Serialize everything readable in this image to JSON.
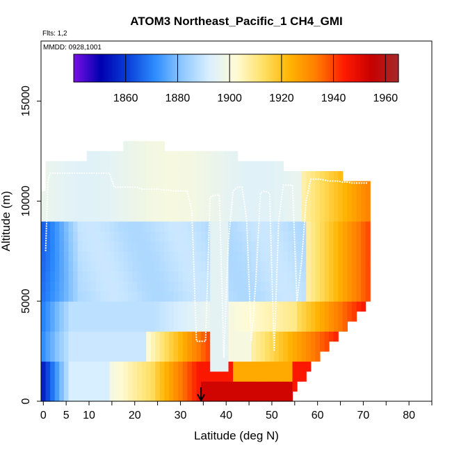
{
  "chart_data": {
    "type": "heatmap",
    "title": "ATOM3 Northeast_Pacific_1 CH4_GMI",
    "annotations": [
      "Flts: 1,2",
      "MMDD: 0928,1001"
    ],
    "xlabel": "Latitude (deg N)",
    "ylabel": "Altitude (m)",
    "xlim": [
      -0.5,
      85
    ],
    "ylim": [
      0,
      18000
    ],
    "xticks": [
      0,
      5,
      10,
      20,
      30,
      40,
      50,
      60,
      70,
      80
    ],
    "yticks": [
      0,
      5000,
      10000,
      15000
    ],
    "colorbar": {
      "range": [
        1840,
        1965
      ],
      "ticks": [
        1860,
        1880,
        1900,
        1920,
        1940,
        1960
      ],
      "colors": [
        "#7a10e6",
        "#0000b0",
        "#0a3fd8",
        "#2d8cff",
        "#8ec8ff",
        "#d9efff",
        "#fffbd6",
        "#ffe066",
        "#ffb300",
        "#ff7a00",
        "#ff1a00",
        "#c80000",
        "#a52a2a"
      ]
    },
    "flight_track": {
      "x": [
        0.5,
        1.0,
        1.5,
        2.5,
        3.5,
        4.5,
        5.5,
        6.5,
        7.5,
        8.5,
        9.5,
        10.5,
        11.5,
        12.5,
        13.5,
        14.5,
        15.5,
        16.5,
        17.5,
        18.5,
        19.5,
        20.5,
        21.5,
        22.5,
        23.5,
        24.5,
        25.5,
        26.5,
        27.5,
        28.5,
        29.5,
        30.5,
        31.5,
        32.5,
        33.5,
        34.5,
        35.5,
        36.5,
        37.5,
        38.5,
        39.5,
        40.5,
        41.5,
        42.5,
        43.5,
        44.5,
        45.5,
        46.5,
        47.5,
        48.5,
        49.5,
        50.5,
        51.5,
        52.5,
        53.5,
        54.5,
        55.5,
        56.5,
        57.5,
        58.5,
        59.5,
        60.5,
        61.5,
        62.5,
        63.5,
        64.5,
        65.5,
        66.5,
        67.5,
        68.5,
        69.5,
        70.5,
        71.0
      ],
      "y": [
        7500,
        11000,
        11400,
        11400,
        11400,
        11400,
        11400,
        11400,
        11400,
        11400,
        11400,
        11400,
        11400,
        11400,
        11400,
        11400,
        10700,
        10700,
        10700,
        10700,
        10700,
        10700,
        10600,
        10600,
        10600,
        10600,
        10600,
        10550,
        10550,
        10500,
        10500,
        10500,
        10500,
        9500,
        3000,
        3000,
        3000,
        10200,
        10300,
        10300,
        2200,
        8000,
        10500,
        10700,
        10700,
        9000,
        3000,
        6000,
        10400,
        10500,
        10400,
        2500,
        9000,
        10800,
        10800,
        10800,
        5000,
        7000,
        10000,
        11100,
        11100,
        11100,
        11050,
        11000,
        11000,
        11000,
        10950,
        10950,
        10900,
        10900,
        10900,
        10900,
        10900
      ]
    },
    "marker": {
      "x": 34.5,
      "y": 0,
      "label": "arrow"
    }
  }
}
